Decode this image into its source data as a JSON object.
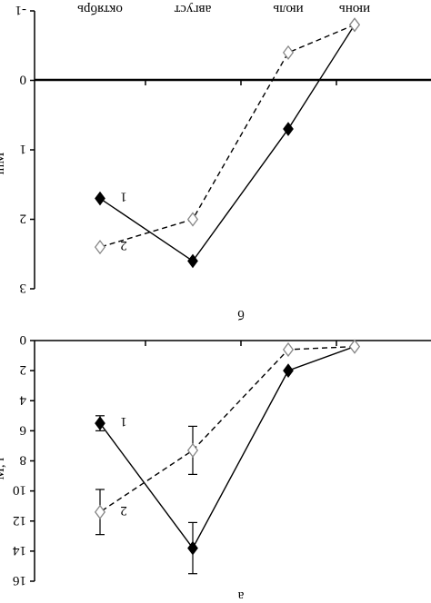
{
  "chart_data": [
    {
      "type": "line",
      "panel_label": "б",
      "categories": [
        "июнь",
        "июль",
        "август",
        "октябрь"
      ],
      "ylabel": "lnM",
      "ylim": [
        -1,
        3
      ],
      "y_ticks": [
        "-1",
        "0",
        "1",
        "2",
        "3"
      ],
      "series": [
        {
          "name": "1",
          "style": "solid",
          "marker": "filled-diamond",
          "values": [
            -0.8,
            0.7,
            2.6,
            1.7
          ]
        },
        {
          "name": "2",
          "style": "dashed",
          "marker": "open-diamond",
          "values": [
            -0.8,
            -0.4,
            2.0,
            2.4
          ]
        }
      ]
    },
    {
      "type": "line",
      "panel_label": "a",
      "categories": [
        "июнь",
        "июль",
        "август",
        "октябрь"
      ],
      "ylabel": "M, г",
      "ylim": [
        0,
        16
      ],
      "y_ticks": [
        "0",
        "2",
        "4",
        "6",
        "8",
        "10",
        "12",
        "14",
        "16"
      ],
      "series": [
        {
          "name": "1",
          "style": "solid",
          "marker": "filled-diamond",
          "values": [
            0.4,
            2.0,
            13.8,
            5.5
          ],
          "error": [
            null,
            null,
            1.7,
            0.5
          ]
        },
        {
          "name": "2",
          "style": "dashed",
          "marker": "open-diamond",
          "values": [
            0.4,
            0.6,
            7.3,
            11.4
          ],
          "error": [
            null,
            null,
            1.6,
            1.5
          ]
        }
      ]
    }
  ],
  "colors": {
    "ink": "#000000",
    "open_marker_stroke": "#888888"
  }
}
